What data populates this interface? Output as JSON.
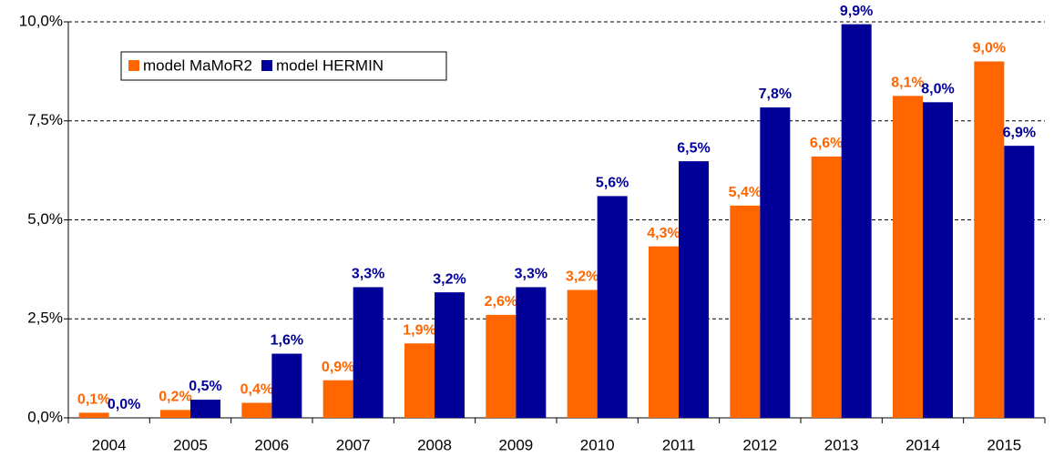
{
  "chart_data": {
    "type": "bar",
    "categories": [
      "2004",
      "2005",
      "2006",
      "2007",
      "2008",
      "2009",
      "2010",
      "2011",
      "2012",
      "2013",
      "2014",
      "2015"
    ],
    "series": [
      {
        "name": "model MaMoR2",
        "color": "#ff6600",
        "values": [
          0.13,
          0.2,
          0.38,
          0.95,
          1.88,
          2.6,
          3.23,
          4.33,
          5.36,
          6.6,
          8.13,
          9.0
        ],
        "value_labels": [
          "0,1%",
          "0,2%",
          "0,4%",
          "0,9%",
          "1,9%",
          "2,6%",
          "3,2%",
          "4,3%",
          "5,4%",
          "6,6%",
          "8,1%",
          "9,0%"
        ]
      },
      {
        "name": "model HERMIN",
        "color": "#000099",
        "values": [
          0.0,
          0.46,
          1.62,
          3.3,
          3.17,
          3.3,
          5.6,
          6.48,
          7.84,
          9.94,
          7.97,
          6.87
        ],
        "value_labels": [
          "0,0%",
          "0,5%",
          "1,6%",
          "3,3%",
          "3,2%",
          "3,3%",
          "5,6%",
          "6,5%",
          "7,8%",
          "9,9%",
          "8,0%",
          "6,9%"
        ]
      }
    ],
    "ylim": [
      0,
      10
    ],
    "yticks": [
      {
        "value": 0,
        "label": "0,0%"
      },
      {
        "value": 2.5,
        "label": "2,5%"
      },
      {
        "value": 5,
        "label": "5,0%"
      },
      {
        "value": 7.5,
        "label": "7,5%"
      },
      {
        "value": 10,
        "label": "10,0%"
      }
    ],
    "grid": true,
    "legend": "upper left"
  }
}
